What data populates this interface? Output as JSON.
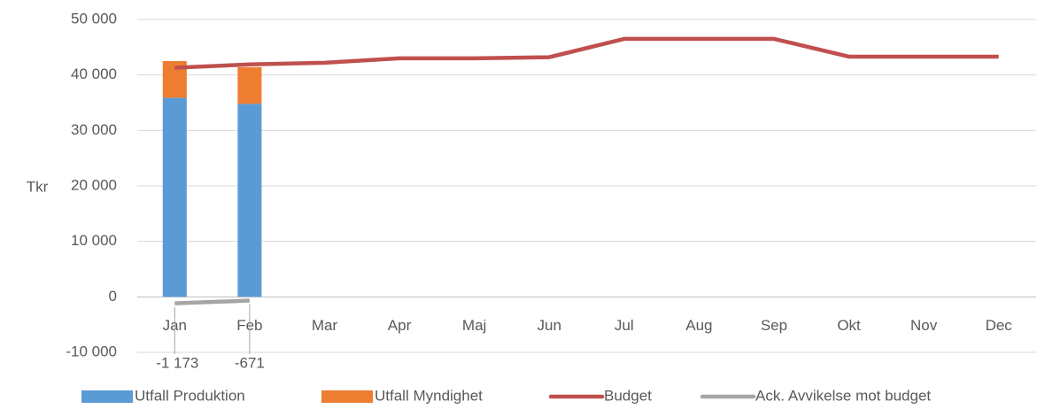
{
  "chart_data": {
    "type": "bar",
    "y_label": "Tkr",
    "categories": [
      "Jan",
      "Feb",
      "Mar",
      "Apr",
      "Maj",
      "Jun",
      "Jul",
      "Aug",
      "Sep",
      "Okt",
      "Nov",
      "Dec"
    ],
    "series": [
      {
        "name": "Utfall Produktion",
        "color": "#5b9bd5",
        "type": "bar",
        "values": [
          35900,
          34800,
          null,
          null,
          null,
          null,
          null,
          null,
          null,
          null,
          null,
          null
        ]
      },
      {
        "name": "Utfall Myndighet",
        "color": "#ed7d31",
        "type": "bar",
        "values": [
          6600,
          6600,
          null,
          null,
          null,
          null,
          null,
          null,
          null,
          null,
          null,
          null
        ]
      },
      {
        "name": "Budget",
        "color": "#c0504d",
        "type": "line",
        "values": [
          41300,
          41900,
          42200,
          43000,
          43000,
          43200,
          46500,
          46500,
          46500,
          43300,
          43300,
          43300
        ]
      },
      {
        "name": "Ack. Avvikelse mot budget",
        "color": "#a5a5a5",
        "type": "line",
        "values": [
          -1173,
          -671,
          null,
          null,
          null,
          null,
          null,
          null,
          null,
          null,
          null,
          null
        ],
        "value_labels": [
          "-1 173",
          "-671",
          null,
          null,
          null,
          null,
          null,
          null,
          null,
          null,
          null,
          null
        ]
      }
    ],
    "ylim": [
      -10000,
      50000
    ],
    "yticks": [
      {
        "value": -10000,
        "label": "-10 000"
      },
      0,
      {
        "value": 10000,
        "label": "10 000"
      },
      {
        "value": 20000,
        "label": "20 000"
      },
      {
        "value": 30000,
        "label": "30 000"
      },
      {
        "value": 40000,
        "label": "40 000"
      },
      {
        "value": 50000,
        "label": "50 000"
      }
    ],
    "grid": true,
    "legend": "bottom"
  }
}
